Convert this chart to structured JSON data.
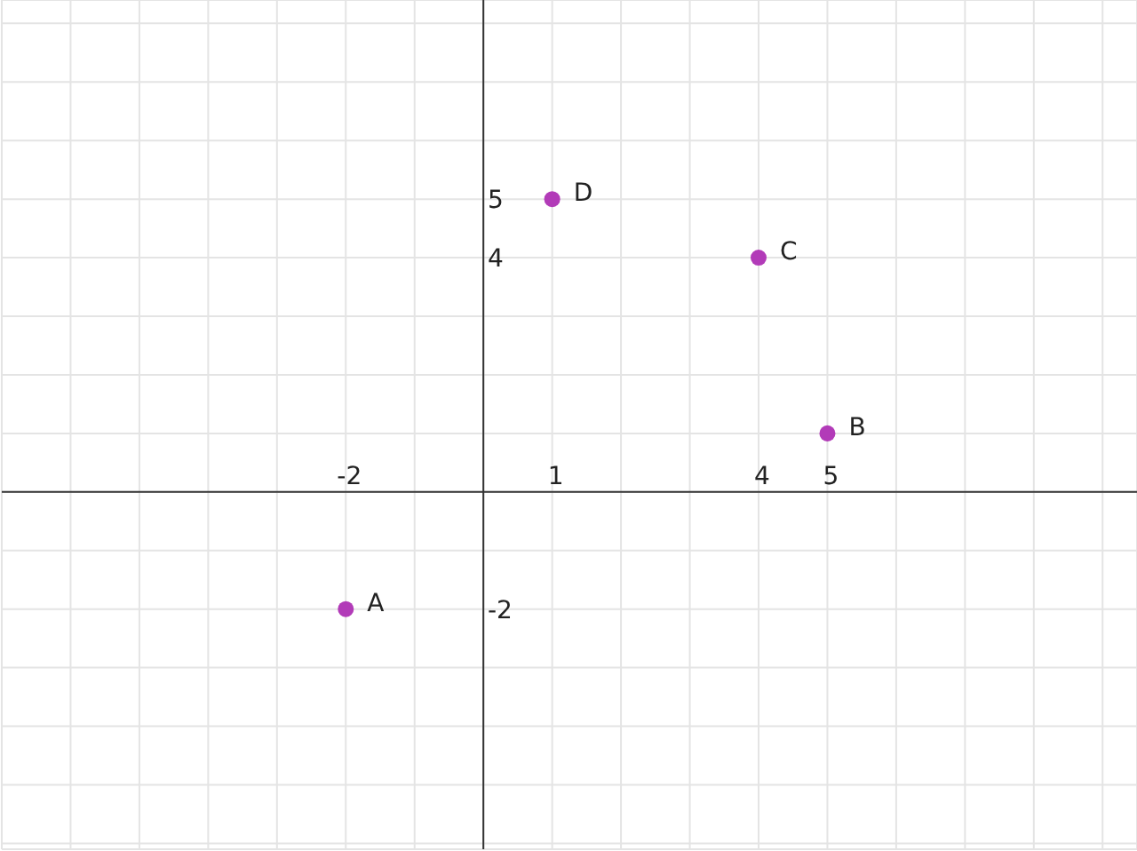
{
  "chart_data": {
    "type": "scatter",
    "x": [
      -2,
      5,
      4,
      1
    ],
    "values": [
      -2,
      1,
      4,
      5
    ],
    "color": "#b23bb8",
    "marker": "circle",
    "grid": true,
    "xlim": [
      -7,
      9.5
    ],
    "ylim": [
      -6.1,
      8.4
    ],
    "xticks": [
      {
        "value": -7,
        "label": null
      },
      {
        "value": -6,
        "label": null
      },
      {
        "value": -5,
        "label": null
      },
      {
        "value": -4,
        "label": null
      },
      {
        "value": -3,
        "label": null
      },
      -2,
      {
        "value": -1,
        "label": null
      },
      {
        "value": 0,
        "label": null
      },
      1,
      {
        "value": 2,
        "label": null
      },
      {
        "value": 3,
        "label": null
      },
      4,
      5,
      {
        "value": 6,
        "label": null
      },
      {
        "value": 7,
        "label": null
      },
      {
        "value": 8,
        "label": null
      },
      {
        "value": 9,
        "label": null
      }
    ],
    "yticks": [
      {
        "value": -6,
        "label": null
      },
      {
        "value": -5,
        "label": null
      },
      {
        "value": -4,
        "label": null
      },
      {
        "value": -3,
        "label": null
      },
      -2,
      {
        "value": -1,
        "label": null
      },
      {
        "value": 0,
        "label": null
      },
      {
        "value": 1,
        "label": null
      },
      {
        "value": 2,
        "label": null
      },
      {
        "value": 3,
        "label": null
      },
      4,
      5,
      {
        "value": 6,
        "label": null
      },
      {
        "value": 7,
        "label": null
      },
      {
        "value": 8,
        "label": null
      }
    ],
    "annotations": [
      {
        "text": "A",
        "x": -2,
        "y": -2
      },
      {
        "text": "B",
        "x": 5,
        "y": 1
      },
      {
        "text": "C",
        "x": 4,
        "y": 4
      },
      {
        "text": "D",
        "x": 1,
        "y": 5
      }
    ]
  }
}
